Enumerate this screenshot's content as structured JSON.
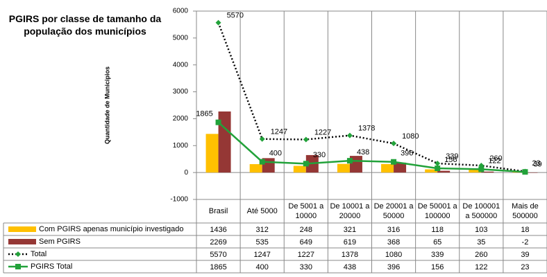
{
  "chart_data": {
    "type": "bar_line_table",
    "title": "PGIRS por classe de tamanho da população dos municípios",
    "y_axis_label": "Quantidade de Municipios",
    "categories": [
      "Brasil",
      "Até 5000",
      "De 5001 a 10000",
      "De 10001 a 20000",
      "De 20001 a 50000",
      "De 50001 a 100000",
      "De 100001 a 500000",
      "Mais de 500000"
    ],
    "series": [
      {
        "name": "Com PGIRS apenas  município investigado",
        "kind": "bar",
        "color": "#ffc000",
        "values": [
          1436,
          312,
          248,
          321,
          316,
          118,
          103,
          18
        ]
      },
      {
        "name": "Sem PGIRS",
        "kind": "bar",
        "color": "#953735",
        "values": [
          2269,
          535,
          649,
          619,
          368,
          65,
          35,
          -2
        ]
      },
      {
        "name": "Total",
        "kind": "line",
        "line_style": "dotted",
        "line_color": "#000000",
        "color": "#22a23a",
        "marker": "diamond",
        "values": [
          5570,
          1247,
          1227,
          1378,
          1080,
          339,
          260,
          39
        ]
      },
      {
        "name": "PGIRS Total",
        "kind": "line",
        "line_style": "solid",
        "line_color": "#22a23a",
        "color": "#22a23a",
        "marker": "square",
        "values": [
          1865,
          400,
          330,
          438,
          396,
          156,
          122,
          23
        ]
      }
    ],
    "ylim": [
      -1000,
      6000
    ],
    "yticks": [
      -1000,
      0,
      1000,
      2000,
      3000,
      4000,
      5000,
      6000
    ],
    "grid": false
  }
}
